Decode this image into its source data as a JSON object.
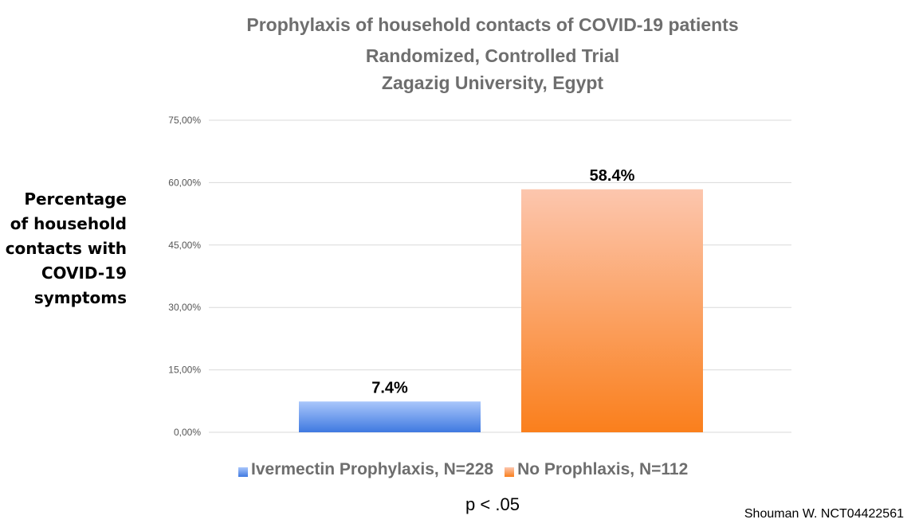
{
  "chart_data": {
    "type": "bar",
    "title": [
      "Prophylaxis of household contacts of COVID-19 patients",
      "Randomized, Controlled Trial",
      "Zagazig University, Egypt"
    ],
    "ylabel": [
      "Percentage",
      "of household",
      "contacts with",
      "COVID-19",
      "symptoms"
    ],
    "xlabel": "",
    "ylim": [
      0,
      75
    ],
    "yticks": [
      0,
      15,
      30,
      45,
      60,
      75
    ],
    "ytick_labels": [
      "0,00%",
      "15,00%",
      "30,00%",
      "45,00%",
      "60,00%",
      "75,00%"
    ],
    "categories": [
      "Ivermectin Prophylaxis, N=228",
      "No Prophlaxis, N=112"
    ],
    "values": [
      7.4,
      58.4
    ],
    "data_labels": [
      "7.4%",
      "58.4%"
    ],
    "colors": [
      "#5b8ff0",
      "#fb8a2c"
    ],
    "grid": true,
    "legend_position": "bottom"
  },
  "annotations": {
    "p_value": "p < .05",
    "source": "Shouman W. NCT04422561"
  }
}
